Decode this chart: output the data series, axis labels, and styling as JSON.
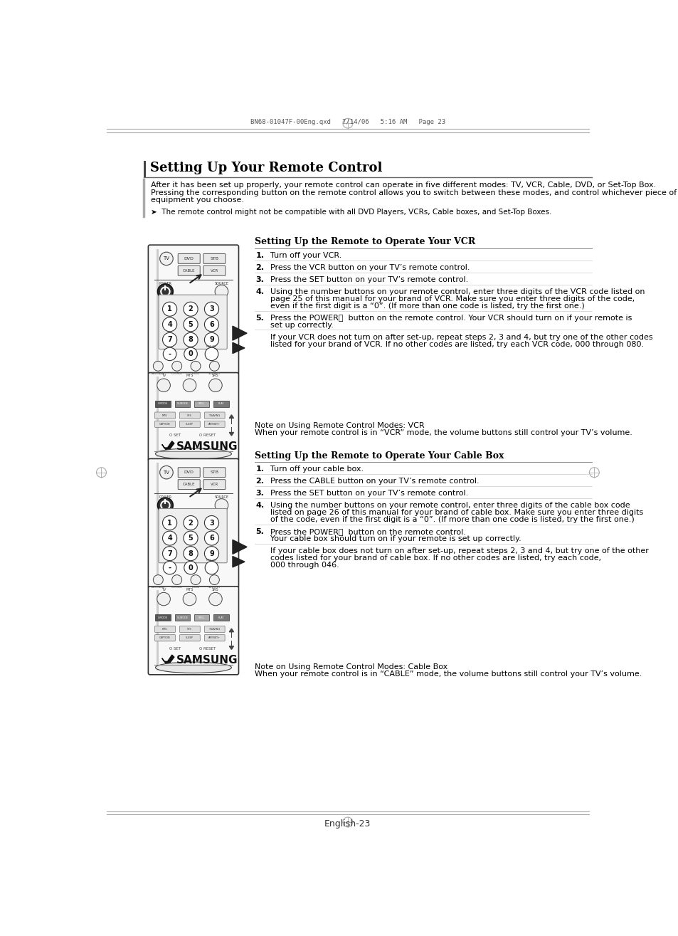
{
  "page_header": "BN68-01047F-00Eng.qxd   7/14/06   5:16 AM   Page 23",
  "page_footer": "English-23",
  "section_title": "Setting Up Your Remote Control",
  "section_intro_1": "After it has been set up properly, your remote control can operate in five different modes: TV, VCR, Cable, DVD, or Set-Top Box.",
  "section_intro_2": "Pressing the corresponding button on the remote control allows you to switch between these modes, and control whichever piece of",
  "section_intro_3": "equipment you choose.",
  "note_intro": "➤  The remote control might not be compatible with all DVD Players, VCRs, Cable boxes, and Set-Top Boxes.",
  "vcr_section_title": "Setting Up the Remote to Operate Your VCR",
  "vcr_step1_num": "1.",
  "vcr_step1_text": "Turn off your VCR.",
  "vcr_step2_num": "2.",
  "vcr_step2_text": "Press the VCR button on your TV’s remote control.",
  "vcr_step3_num": "3.",
  "vcr_step3_text": "Press the SET button on your TV’s remote control.",
  "vcr_step4_num": "4.",
  "vcr_step4_text": "Using the number buttons on your remote control, enter three digits of the VCR code listed on",
  "vcr_step4_text2": "page 25 of this manual for your brand of VCR. Make sure you enter three digits of the code,",
  "vcr_step4_text3": "even if the first digit is a “0”. (If more than one code is listed, try the first one.)",
  "vcr_step5_num": "5.",
  "vcr_step5_text": "Press the POWER⏻  button on the remote control. Your VCR should turn on if your remote is",
  "vcr_step5_text2": "set up correctly.",
  "vcr_note1": "If your VCR does not turn on after set-up, repeat steps 2, 3 and 4, but try one of the other codes",
  "vcr_note2": "listed for your brand of VCR. If no other codes are listed, try each VCR code, 000 through 080.",
  "vcr_mode_note_title": "Note on Using Remote Control Modes: VCR",
  "vcr_mode_note": "When your remote control is in “VCR” mode, the volume buttons still control your TV’s volume.",
  "cable_section_title": "Setting Up the Remote to Operate Your Cable Box",
  "cable_step1_num": "1.",
  "cable_step1_text": "Turn off your cable box.",
  "cable_step2_num": "2.",
  "cable_step2_text": "Press the CABLE button on your TV’s remote control.",
  "cable_step3_num": "3.",
  "cable_step3_text": "Press the SET button on your TV’s remote control.",
  "cable_step4_num": "4.",
  "cable_step4_text": "Using the number buttons on your remote control, enter three digits of the cable box code",
  "cable_step4_text2": "listed on page 26 of this manual for your brand of cable box. Make sure you enter three digits",
  "cable_step4_text3": "of the code, even if the first digit is a “0”. (If more than one code is listed, try the first one.)",
  "cable_step5_num": "5.",
  "cable_step5_text": "Press the POWER⏻  button on the remote control.",
  "cable_step5_text2": "Your cable box should turn on if your remote is set up correctly.",
  "cable_note1": "If your cable box does not turn on after set-up, repeat steps 2, 3 and 4, but try one of the other",
  "cable_note2": "codes listed for your brand of cable box. If no other codes are listed, try each code,",
  "cable_note3": "000 through 046.",
  "cable_mode_note_title": "Note on Using Remote Control Modes: Cable Box",
  "cable_mode_note": "When your remote control is in “CABLE” mode, the volume buttons still control your TV’s volume.",
  "bg_color": "#ffffff",
  "text_color": "#000000"
}
